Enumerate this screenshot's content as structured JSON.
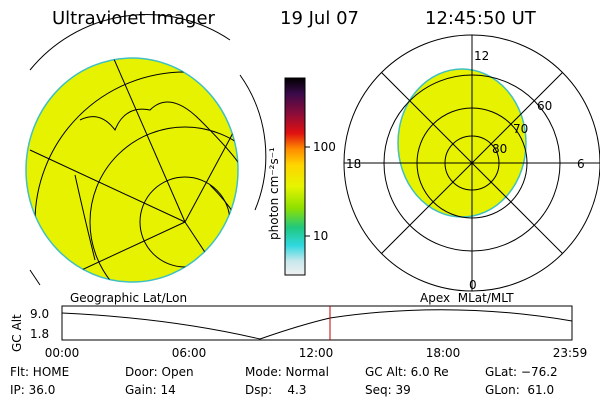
{
  "header": {
    "instrument": "Ultraviolet Imager",
    "date": "19 Jul 07",
    "time": "12:45:50 UT"
  },
  "left_panel": {
    "label": "Geographic Lat/Lon"
  },
  "right_panel": {
    "label": "Apex  MLat/MLT",
    "mlt_labels": [
      "12",
      "18",
      "6",
      "0"
    ],
    "mlat_labels": [
      "60",
      "70",
      "80"
    ]
  },
  "colorbar": {
    "unit": "photon cm⁻²s⁻¹",
    "ticks": [
      "100",
      "10"
    ]
  },
  "altitude_plot": {
    "ylabel": "GC Alt",
    "yticks": [
      "9.0",
      "1.8"
    ],
    "xticks": [
      "00:00",
      "06:00",
      "12:00",
      "18:00",
      "23:59"
    ]
  },
  "info": {
    "rows": [
      [
        "Flt: HOME",
        "Door: Open",
        "Mode: Normal",
        "GC Alt: 6.0 Re",
        "GLat: −76.2"
      ],
      [
        "IP: 36.0",
        "Gain: 14",
        "Dsp:    4.3",
        "Seq: 39",
        "GLon:  61.0"
      ]
    ]
  }
}
